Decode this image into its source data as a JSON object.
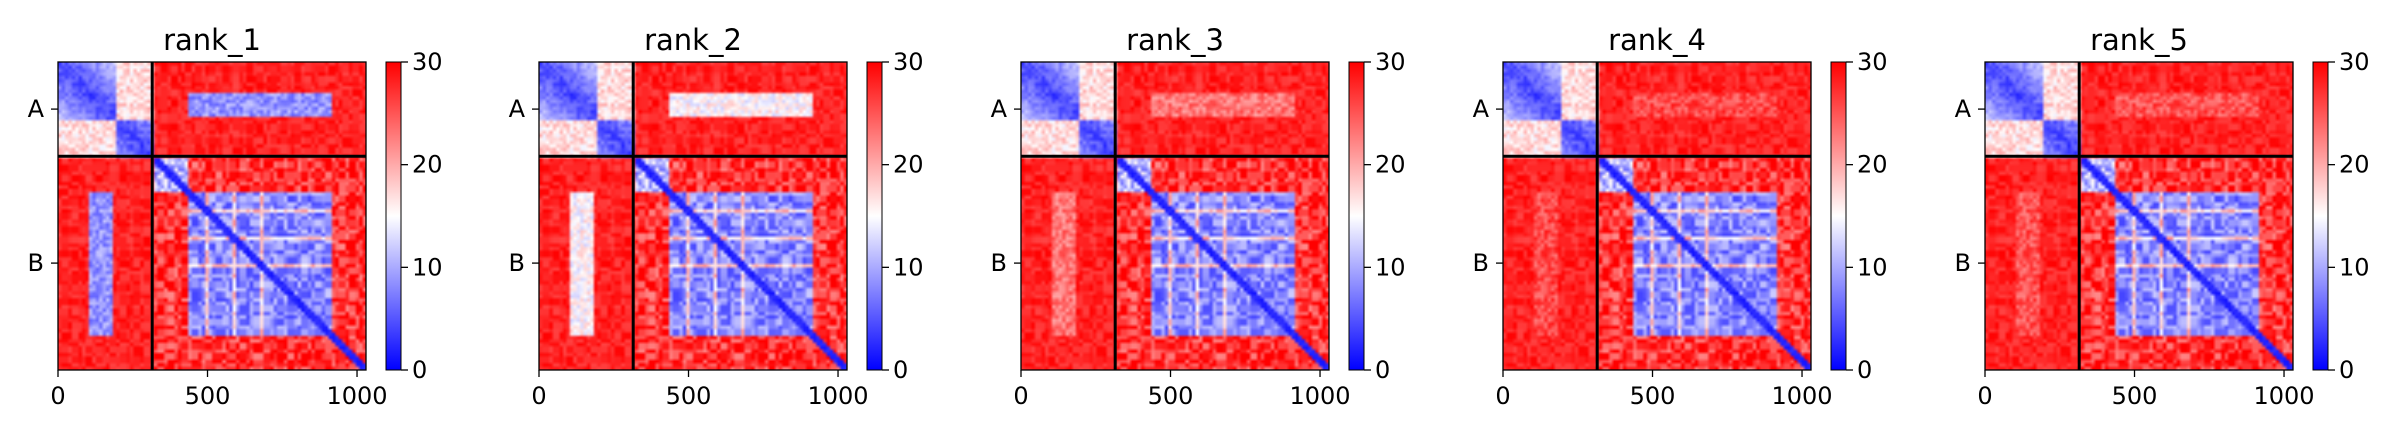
{
  "chart_data": [
    {
      "type": "heatmap",
      "title": "rank_1",
      "chains": [
        {
          "label": "A",
          "start": 0,
          "end": 315
        },
        {
          "label": "B",
          "start": 315,
          "end": 1030
        }
      ],
      "xticks": [
        0,
        500,
        1000
      ],
      "xlim": [
        0,
        1030
      ],
      "colorbar": {
        "min": 0,
        "max": 30,
        "ticks": [
          0,
          10,
          20,
          30
        ],
        "colors": [
          "#0000ff",
          "#ffffff",
          "#ff0000"
        ]
      },
      "interchain_blue_level": 0.7
    },
    {
      "type": "heatmap",
      "title": "rank_2",
      "chains": [
        {
          "label": "A",
          "start": 0,
          "end": 315
        },
        {
          "label": "B",
          "start": 315,
          "end": 1030
        }
      ],
      "xticks": [
        0,
        500,
        1000
      ],
      "xlim": [
        0,
        1030
      ],
      "colorbar": {
        "min": 0,
        "max": 30,
        "ticks": [
          0,
          10,
          20,
          30
        ],
        "colors": [
          "#0000ff",
          "#ffffff",
          "#ff0000"
        ]
      },
      "interchain_blue_level": 0.45
    },
    {
      "type": "heatmap",
      "title": "rank_3",
      "chains": [
        {
          "label": "A",
          "start": 0,
          "end": 315
        },
        {
          "label": "B",
          "start": 315,
          "end": 1030
        }
      ],
      "xticks": [
        0,
        500,
        1000
      ],
      "xlim": [
        0,
        1030
      ],
      "colorbar": {
        "min": 0,
        "max": 30,
        "ticks": [
          0,
          10,
          20,
          30
        ],
        "colors": [
          "#0000ff",
          "#ffffff",
          "#ff0000"
        ]
      },
      "interchain_blue_level": 0.15
    },
    {
      "type": "heatmap",
      "title": "rank_4",
      "chains": [
        {
          "label": "A",
          "start": 0,
          "end": 315
        },
        {
          "label": "B",
          "start": 315,
          "end": 1030
        }
      ],
      "xticks": [
        0,
        500,
        1000
      ],
      "xlim": [
        0,
        1030
      ],
      "colorbar": {
        "min": 0,
        "max": 30,
        "ticks": [
          0,
          10,
          20,
          30
        ],
        "colors": [
          "#0000ff",
          "#ffffff",
          "#ff0000"
        ]
      },
      "interchain_blue_level": 0.05
    },
    {
      "type": "heatmap",
      "title": "rank_5",
      "chains": [
        {
          "label": "A",
          "start": 0,
          "end": 315
        },
        {
          "label": "B",
          "start": 315,
          "end": 1030
        }
      ],
      "xticks": [
        0,
        500,
        1000
      ],
      "xlim": [
        0,
        1030
      ],
      "colorbar": {
        "min": 0,
        "max": 30,
        "ticks": [
          0,
          10,
          20,
          30
        ],
        "colors": [
          "#0000ff",
          "#ffffff",
          "#ff0000"
        ]
      },
      "interchain_blue_level": 0.07
    }
  ]
}
